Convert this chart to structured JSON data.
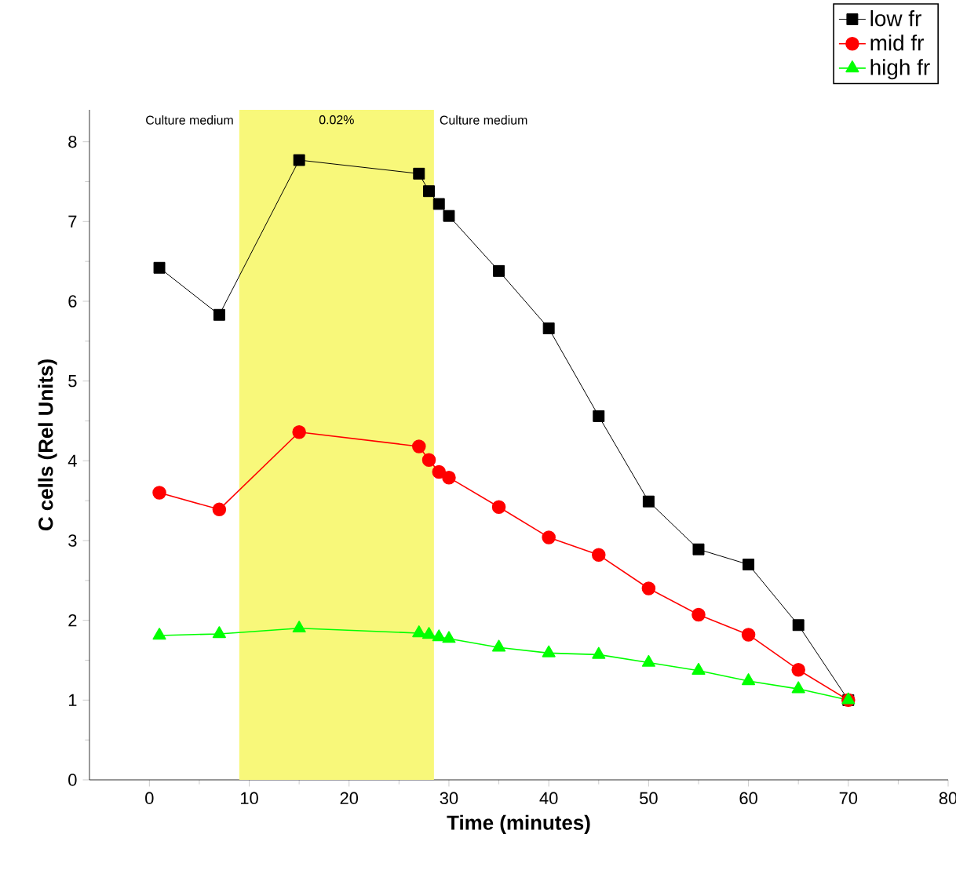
{
  "chart_data": {
    "type": "line",
    "xlabel": "Time (minutes)",
    "ylabel": "C cells (Rel Units)",
    "x": [
      1,
      7,
      15,
      27,
      28,
      29,
      30,
      35,
      40,
      45,
      50,
      55,
      60,
      65,
      70
    ],
    "series": [
      {
        "name": "low fr",
        "color": "#000000",
        "marker": "square",
        "values": [
          6.42,
          5.83,
          7.77,
          7.6,
          7.38,
          7.22,
          7.07,
          6.38,
          5.66,
          4.56,
          3.49,
          2.89,
          2.7,
          1.94,
          1.0
        ]
      },
      {
        "name": "mid fr",
        "color": "#ff0000",
        "marker": "circle",
        "values": [
          3.6,
          3.39,
          4.36,
          4.18,
          4.01,
          3.86,
          3.79,
          3.42,
          3.04,
          2.82,
          2.4,
          2.07,
          1.82,
          1.38,
          1.0
        ]
      },
      {
        "name": "high fr",
        "color": "#00ff00",
        "marker": "triangle",
        "values": [
          1.81,
          1.83,
          1.9,
          1.84,
          1.82,
          1.79,
          1.77,
          1.66,
          1.59,
          1.57,
          1.47,
          1.37,
          1.24,
          1.14,
          1.0
        ]
      }
    ],
    "xlim": [
      -6,
      80
    ],
    "xticks": [
      0,
      10,
      20,
      30,
      40,
      50,
      60,
      70,
      80
    ],
    "ylim": [
      0,
      8.4
    ],
    "yticks": [
      0,
      1,
      2,
      3,
      4,
      5,
      6,
      7,
      8
    ],
    "bands": [
      {
        "axis": "x",
        "from": 9,
        "to": 28.5,
        "label": "0.02%",
        "color": "#f8f87a"
      }
    ],
    "annotations": [
      "Culture medium",
      "Culture medium"
    ],
    "legend": "top right",
    "grid": false
  }
}
